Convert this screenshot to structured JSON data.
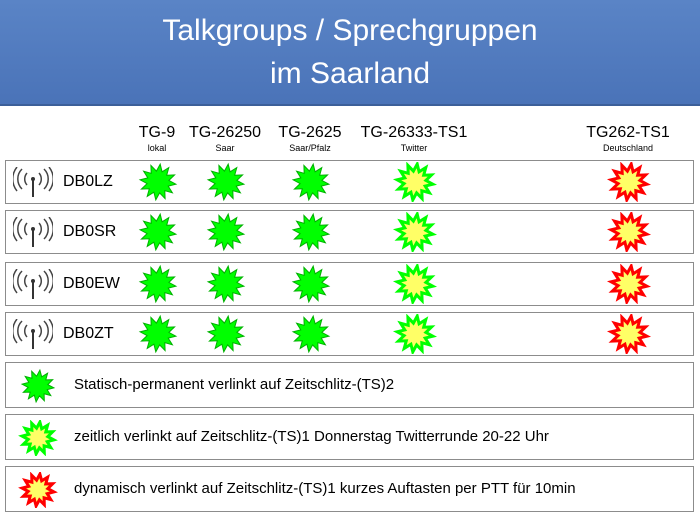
{
  "header": {
    "title_line1": "Talkgroups / Sprechgruppen",
    "title_line2": "im Saarland"
  },
  "colors": {
    "header_bg": "#4a73b8",
    "static_green": "#00ff00",
    "timed_fill": "#ffff66",
    "dynamic_red": "#ff0000"
  },
  "talkgroups": [
    {
      "tg": "TG-9",
      "sub": "lokal",
      "type": "static"
    },
    {
      "tg": "TG-26250",
      "sub": "Saar",
      "type": "static"
    },
    {
      "tg": "TG-2625",
      "sub": "Saar/Pfalz",
      "type": "static"
    },
    {
      "tg": "TG-26333-TS1",
      "sub": "Twitter",
      "type": "timed"
    },
    {
      "tg": "TG262-TS1",
      "sub": "Deutschland",
      "type": "dynamic"
    }
  ],
  "repeaters": [
    {
      "name": "DB0LZ",
      "icon": "antenna-icon"
    },
    {
      "name": "DB0SR",
      "icon": "antenna-icon"
    },
    {
      "name": "DB0EW",
      "icon": "antenna-icon"
    },
    {
      "name": "DB0ZT",
      "icon": "antenna-icon"
    }
  ],
  "legend": [
    {
      "type": "static",
      "text": "Statisch-permanent verlinkt auf Zeitschlitz-(TS)2"
    },
    {
      "type": "timed",
      "text": "zeitlich verlinkt auf Zeitschlitz-(TS)1 Donnerstag Twitterrunde 20-22 Uhr"
    },
    {
      "type": "dynamic",
      "text": "dynamisch verlinkt auf Zeitschlitz-(TS)1 kurzes Auftasten per PTT für 10min"
    }
  ]
}
